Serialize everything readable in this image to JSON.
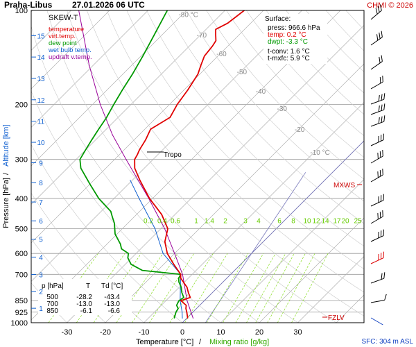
{
  "header": {
    "station": "Praha-Libus",
    "datetime": "27.01.2026 06 UTC",
    "credit": "CHMI © 2026"
  },
  "legend": {
    "title": "SKEW-T",
    "items": [
      {
        "label": "temperature",
        "color": "#e00000"
      },
      {
        "label": "virt.temp.",
        "color": "#e00000"
      },
      {
        "label": "dew point",
        "color": "#009900"
      },
      {
        "label": "wet bulb temp.",
        "color": "#1060d0"
      },
      {
        "label": "updraft v.temp.",
        "color": "#990099"
      }
    ]
  },
  "surface_box": {
    "title": "Surface:",
    "press": "press: 966.6 hPa",
    "temp": "temp: 0.2 °C",
    "dwpt": "dwpt: -3.3 °C",
    "tconv": "t-conv: 1.6 °C",
    "tmxfc": "t-mxfc: 5.9 °C"
  },
  "levels_table": {
    "headers": [
      "p [hPa]",
      "T",
      "Td [°C]"
    ],
    "rows": [
      [
        "500",
        "-28.2",
        "-43.4"
      ],
      [
        "700",
        "-13.0",
        "-13.0"
      ],
      [
        "850",
        "-6.1",
        "-6.6"
      ]
    ]
  },
  "annotations": {
    "tropo": "Tropo",
    "mxws": "MXWS",
    "fzlv": "FZLV",
    "sfc": "SFC: 304 m ASL"
  },
  "axes": {
    "xlabel_temp": "Temperature [°C]",
    "xlabel_sep": "/",
    "xlabel_mix": "Mixing ratio [g/kg]",
    "ylabel_pres": "Pressure [hPa]",
    "ylabel_sep": "/",
    "ylabel_alt": "Altitude [km]"
  },
  "colors": {
    "temperature": "#e00000",
    "dewpoint": "#009900",
    "wetbulb": "#1060d0",
    "updraft": "#990099",
    "mixing": "#66cc00",
    "grid": "#aaaaaa",
    "header_credit": "#cc0000"
  },
  "chart_data": {
    "type": "line",
    "title": "Praha-Libus 27.01.2026 06 UTC",
    "xlabel": "Temperature [°C] / Mixing ratio [g/kg]",
    "ylabel": "Pressure [hPa] / Altitude [km]",
    "x_scale": "skew-T",
    "y_scale": "log",
    "xlim": [
      -35,
      40
    ],
    "ylim": [
      1000,
      100
    ],
    "pressure_ticks": [
      100,
      200,
      300,
      400,
      500,
      600,
      700,
      850,
      925,
      1000
    ],
    "temperature_ticks": [
      -30,
      -20,
      -10,
      0,
      10,
      20,
      30
    ],
    "altitude_ticks_km": [
      1,
      2,
      3,
      4,
      5,
      6,
      7,
      8,
      9,
      10,
      11,
      12,
      13,
      14,
      15
    ],
    "isotherm_labels": [
      "-80 °C",
      "-70",
      "-60",
      "-50",
      "-40",
      "-30",
      "-20",
      "-10 °C"
    ],
    "mixing_ratio_labels": [
      "0.2",
      "0.4",
      "0.6",
      "1",
      "1.4",
      "2",
      "3",
      "4",
      "6",
      "8",
      "10",
      "12",
      "14",
      "17",
      "20",
      "25"
    ],
    "series": [
      {
        "name": "temperature",
        "pressure": [
          966.6,
          925,
          900,
          880,
          850,
          830,
          800,
          770,
          720,
          700,
          650,
          600,
          550,
          500,
          450,
          400,
          350,
          320,
          300,
          290,
          280,
          260,
          240,
          220,
          200,
          180,
          160,
          150,
          140,
          130,
          125,
          120,
          115,
          110,
          100
        ],
        "values": [
          0.2,
          -1.6,
          -2.8,
          -3.5,
          -6.1,
          -4.5,
          -6.3,
          -8.0,
          -12.0,
          -13.0,
          -17.4,
          -21.9,
          -25.6,
          -28.2,
          -33.5,
          -40.8,
          -48.0,
          -52.5,
          -54.8,
          -55.3,
          -56.0,
          -57.0,
          -58.5,
          -56.5,
          -58.0,
          -59.0,
          -60.5,
          -62.0,
          -63.5,
          -64.0,
          -64.5,
          -66.0,
          -67.5,
          -66.0,
          -65.0
        ]
      },
      {
        "name": "dew point",
        "pressure": [
          966.6,
          925,
          900,
          880,
          850,
          830,
          800,
          770,
          740,
          720,
          700,
          680,
          650,
          620,
          600,
          580,
          560,
          520,
          480,
          460,
          440,
          400,
          360,
          320,
          300,
          280,
          260,
          240,
          220,
          200,
          180,
          160,
          140,
          120,
          100
        ],
        "values": [
          -3.3,
          -4.4,
          -4.8,
          -6.0,
          -6.6,
          -6.2,
          -8.0,
          -9.5,
          -11.5,
          -12.5,
          -13.0,
          -24.0,
          -28.5,
          -31.0,
          -32.0,
          -35.0,
          -36.5,
          -40.5,
          -43.5,
          -45.5,
          -47.5,
          -54.0,
          -60.0,
          -66.5,
          -69.0,
          -70.0,
          -71.0,
          -72.0,
          -73.0,
          -74.5,
          -76.0,
          -77.5,
          -79.5,
          -82.0,
          -85.0
        ]
      },
      {
        "name": "wet bulb temp.",
        "pressure": [
          966.6,
          925,
          850,
          700,
          600,
          500,
          400,
          350
        ],
        "values": [
          -1.2,
          -2.8,
          -6.3,
          -13.0,
          -23.0,
          -31.5,
          -43.5,
          -50.5
        ]
      },
      {
        "name": "updraft v.temp.",
        "pressure": [
          966.6,
          850,
          700,
          600,
          500,
          400,
          300,
          250,
          200,
          150,
          100
        ],
        "values": [
          1.6,
          -4.5,
          -12.5,
          -20.0,
          -29.0,
          -41.0,
          -57.0,
          -67.0,
          -78.0,
          -91.0,
          -108.0
        ]
      }
    ]
  }
}
